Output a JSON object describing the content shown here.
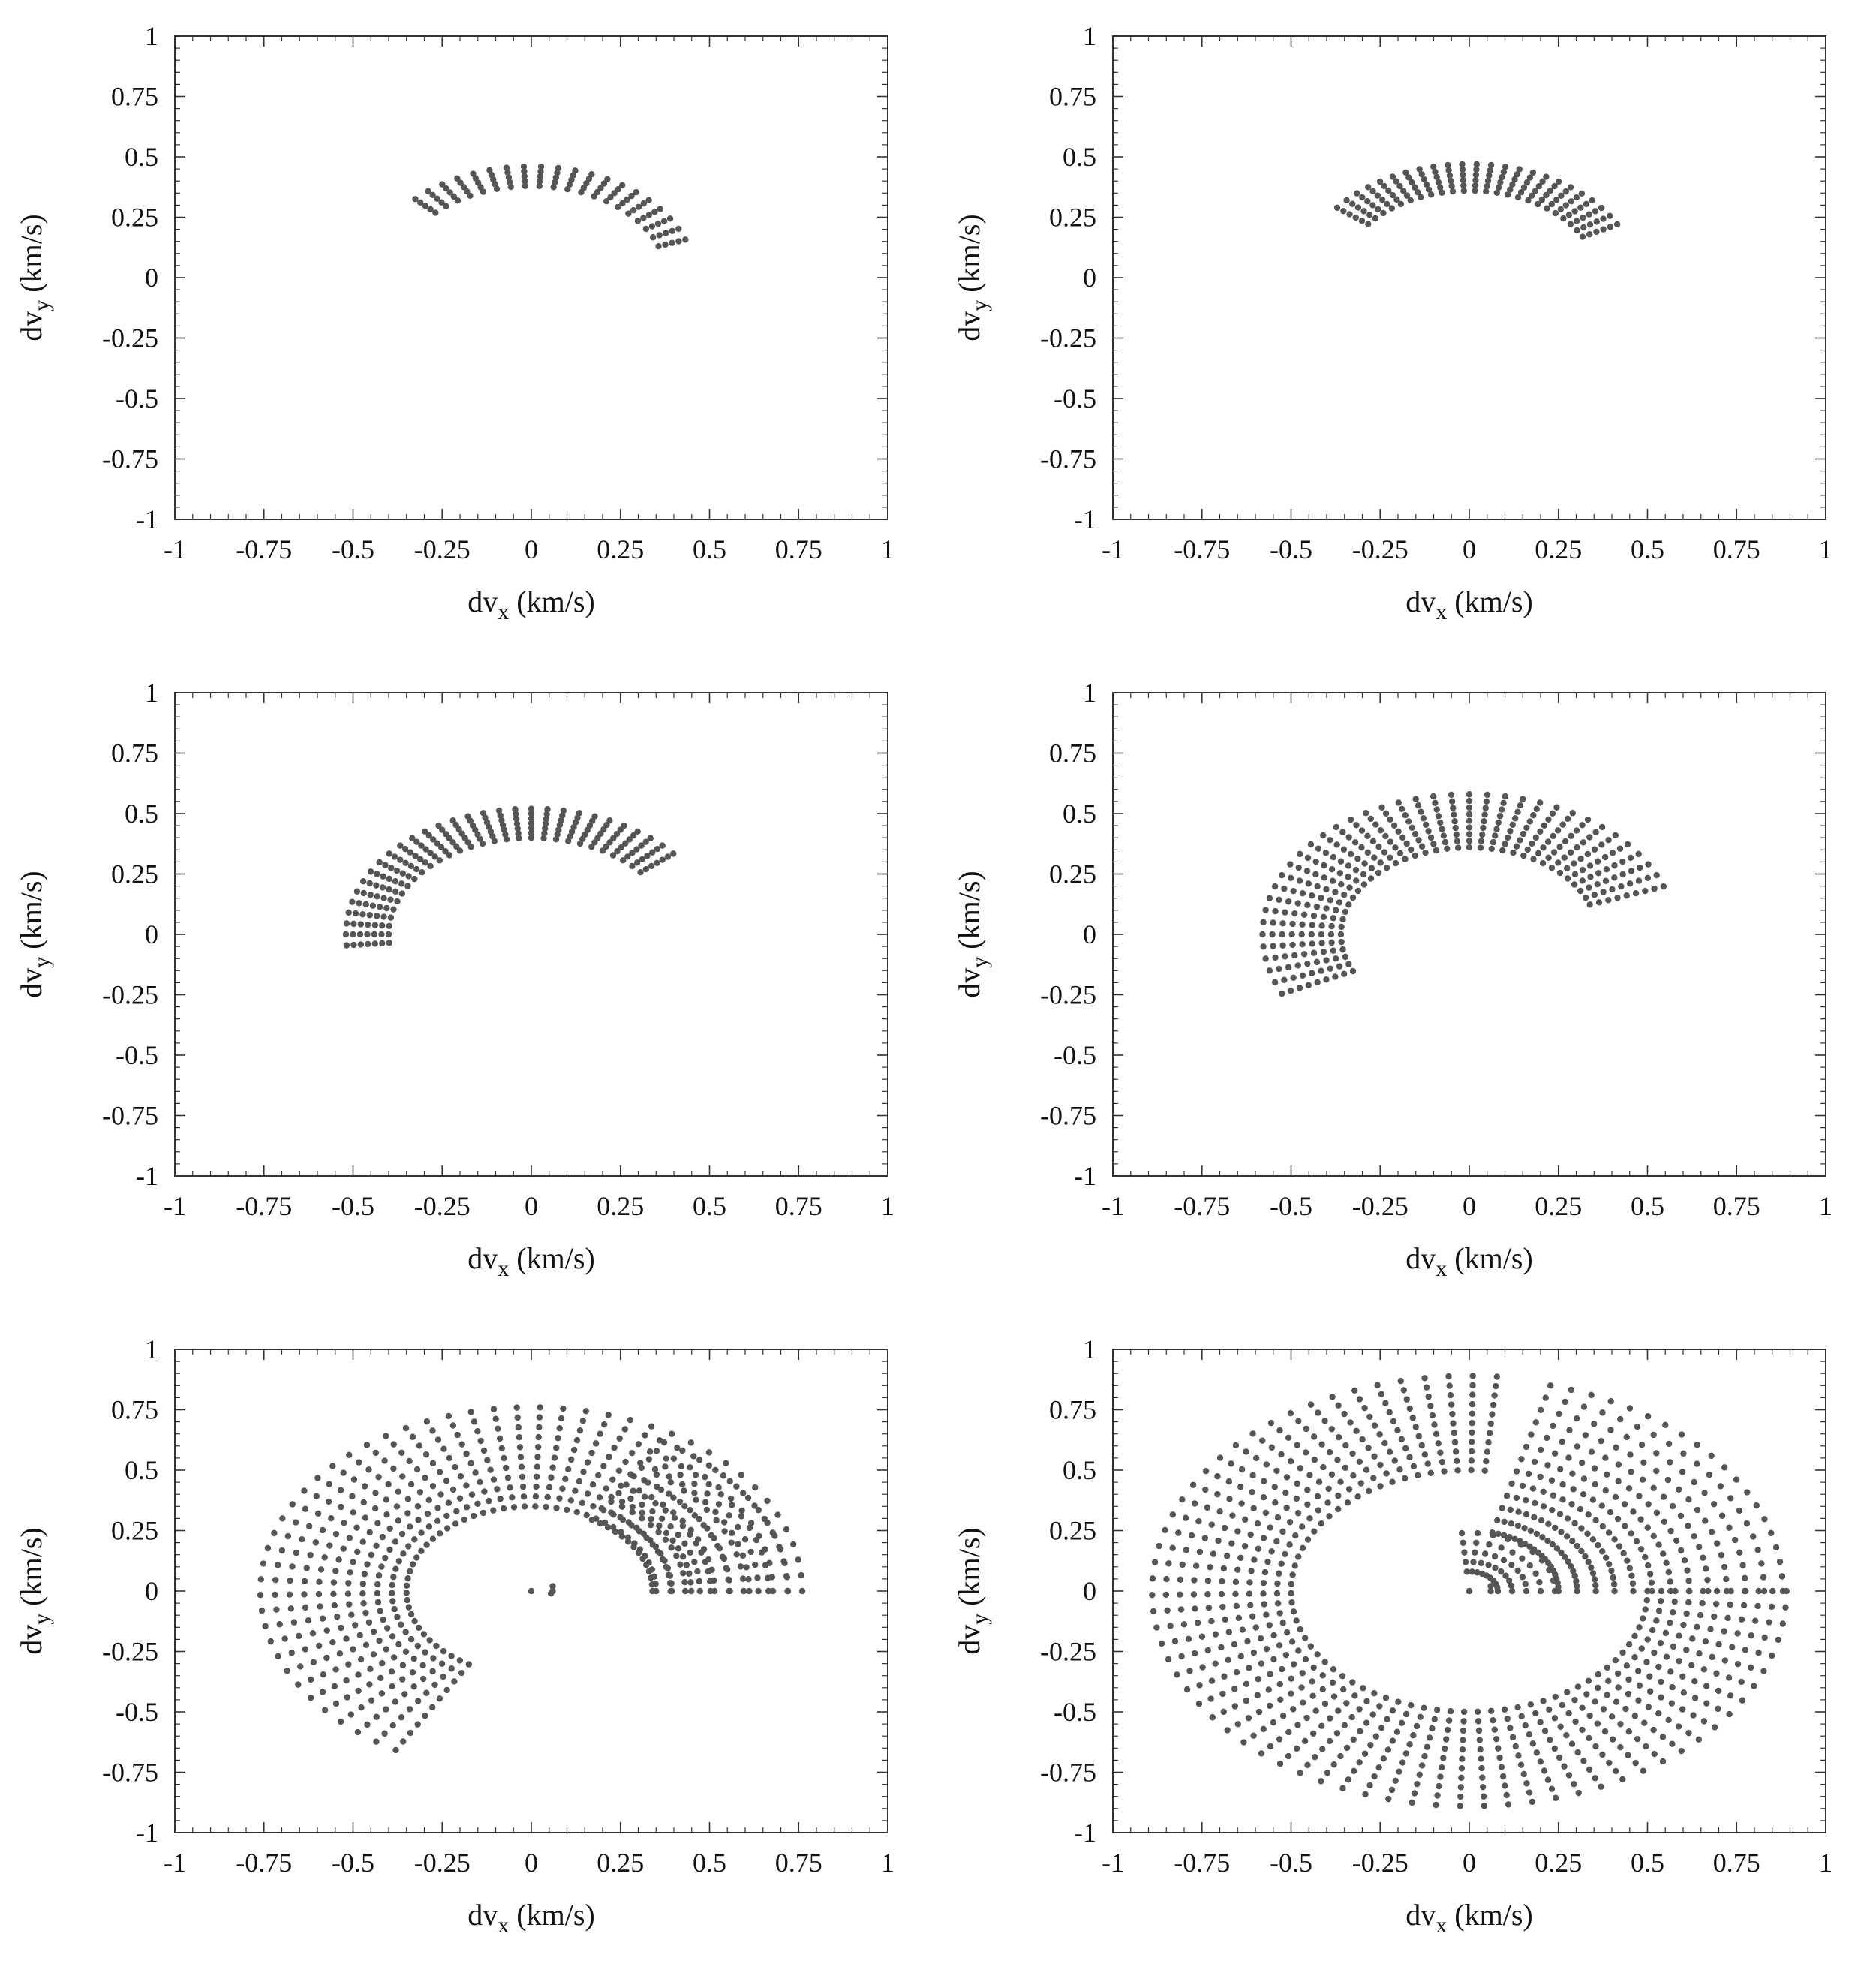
{
  "figure": {
    "marker_color": "#555555",
    "frame_color": "#333333",
    "background": "#ffffff"
  },
  "chart_data": [
    {
      "type": "scatter",
      "panel": "top-left",
      "title": "",
      "xlabel_main": "dv",
      "xlabel_sub": "x",
      "xlabel_unit": " (km/s)",
      "ylabel_main": "dv",
      "ylabel_sub": "y",
      "ylabel_unit": " (km/s)",
      "xlim": [
        -1,
        1
      ],
      "ylim": [
        -1,
        1
      ],
      "xticks": [
        "-1",
        "-0.75",
        "-0.5",
        "-0.25",
        "0",
        "0.25",
        "0.5",
        "0.75",
        "1"
      ],
      "yticks": [
        "-1",
        "-0.75",
        "-0.5",
        "-0.25",
        "0",
        "0.25",
        "0.5",
        "0.75",
        "1"
      ],
      "series": [
        {
          "name": "grid",
          "rays": 20,
          "theta_start_deg": 135,
          "theta_end_deg": 20,
          "r0": 0.38,
          "rmax": 0.46,
          "n": 5
        }
      ]
    },
    {
      "type": "scatter",
      "panel": "top-right",
      "title": "",
      "xlabel_main": "dv",
      "xlabel_sub": "x",
      "xlabel_unit": " (km/s)",
      "ylabel_main": "dv",
      "ylabel_sub": "y",
      "ylabel_unit": " (km/s)",
      "xlim": [
        -1,
        1
      ],
      "ylim": [
        -1,
        1
      ],
      "xticks": [
        "-1",
        "-0.75",
        "-0.5",
        "-0.25",
        "0",
        "0.25",
        "0.5",
        "0.75",
        "1"
      ],
      "yticks": [
        "-1",
        "-0.75",
        "-0.5",
        "-0.25",
        "0",
        "0.25",
        "0.5",
        "0.75",
        "1"
      ],
      "series": [
        {
          "name": "grid",
          "rays": 24,
          "theta_start_deg": 142,
          "theta_end_deg": 28,
          "r0": 0.36,
          "rmax": 0.47,
          "n": 6
        }
      ]
    },
    {
      "type": "scatter",
      "panel": "middle-left",
      "title": "",
      "xlabel_main": "dv",
      "xlabel_sub": "x",
      "xlabel_unit": " (km/s)",
      "ylabel_main": "dv",
      "ylabel_sub": "y",
      "ylabel_unit": " (km/s)",
      "xlim": [
        -1,
        1
      ],
      "ylim": [
        -1,
        1
      ],
      "xticks": [
        "-1",
        "-0.75",
        "-0.5",
        "-0.25",
        "0",
        "0.25",
        "0.5",
        "0.75",
        "1"
      ],
      "yticks": [
        "-1",
        "-0.75",
        "-0.5",
        "-0.25",
        "0",
        "0.25",
        "0.5",
        "0.75",
        "1"
      ],
      "series": [
        {
          "name": "grid",
          "rays": 30,
          "theta_start_deg": 185,
          "theta_end_deg": 40,
          "r0": 0.4,
          "rmax": 0.52,
          "n": 7
        }
      ]
    },
    {
      "type": "scatter",
      "panel": "middle-right",
      "title": "",
      "xlabel_main": "dv",
      "xlabel_sub": "x",
      "xlabel_unit": " (km/s)",
      "ylabel_main": "dv",
      "ylabel_sub": "y",
      "ylabel_unit": " (km/s)",
      "xlim": [
        -1,
        1
      ],
      "ylim": [
        -1,
        1
      ],
      "xticks": [
        "-1",
        "-0.75",
        "-0.5",
        "-0.25",
        "0",
        "0.25",
        "0.5",
        "0.75",
        "1"
      ],
      "yticks": [
        "-1",
        "-0.75",
        "-0.5",
        "-0.25",
        "0",
        "0.25",
        "0.5",
        "0.75",
        "1"
      ],
      "series": [
        {
          "name": "grid",
          "rays": 38,
          "theta_start_deg": 205,
          "theta_end_deg": 20,
          "r0": 0.36,
          "rmax": 0.58,
          "n": 9
        }
      ]
    },
    {
      "type": "scatter",
      "panel": "bottom-left",
      "title": "",
      "xlabel_main": "dv",
      "xlabel_sub": "x",
      "xlabel_unit": " (km/s)",
      "ylabel_main": "dv",
      "ylabel_sub": "y",
      "ylabel_unit": " (km/s)",
      "xlim": [
        -1,
        1
      ],
      "ylim": [
        -1,
        1
      ],
      "xticks": [
        "-1",
        "-0.75",
        "-0.5",
        "-0.25",
        "0",
        "0.25",
        "0.5",
        "0.75",
        "1"
      ],
      "yticks": [
        "-1",
        "-0.75",
        "-0.5",
        "-0.25",
        "0",
        "0.25",
        "0.5",
        "0.75",
        "1"
      ],
      "series": [
        {
          "name": "main-arc",
          "rays": 50,
          "theta_start_deg": 240,
          "theta_end_deg": 0,
          "r0": 0.35,
          "rmax": 0.76,
          "n": 11
        },
        {
          "name": "right-lobe",
          "rays": 14,
          "theta_start_deg": 60,
          "theta_end_deg": 0,
          "r0": 0.34,
          "rmax": 0.72,
          "n": 8
        },
        {
          "name": "center",
          "points": [
            [
              0.0,
              0.0
            ],
            [
              0.06,
              0.0
            ],
            [
              0.06,
              0.02
            ],
            [
              0.055,
              -0.01
            ]
          ]
        }
      ]
    },
    {
      "type": "scatter",
      "panel": "bottom-right",
      "title": "",
      "xlabel_main": "dv",
      "xlabel_sub": "x",
      "xlabel_unit": " (km/s)",
      "ylabel_main": "dv",
      "ylabel_sub": "y",
      "ylabel_unit": " (km/s)",
      "xlim": [
        -1,
        1
      ],
      "ylim": [
        -1,
        1
      ],
      "xticks": [
        "-1",
        "-0.75",
        "-0.5",
        "-0.25",
        "0",
        "0.25",
        "0.5",
        "0.75",
        "1"
      ],
      "yticks": [
        "-1",
        "-0.75",
        "-0.5",
        "-0.25",
        "0",
        "0.25",
        "0.5",
        "0.75",
        "1"
      ],
      "series": [
        {
          "name": "outer-ring",
          "rays": 64,
          "theta_start_deg": 85,
          "theta_end_deg": 360,
          "r0": 0.5,
          "rmax": 0.89,
          "n": 11
        },
        {
          "name": "upper-right",
          "rays": 20,
          "theta_start_deg": 75,
          "theta_end_deg": 0,
          "r0": 0.25,
          "rmax": 0.88,
          "n": 13
        },
        {
          "name": "inner-arcs",
          "rays": 10,
          "theta_start_deg": 95,
          "theta_end_deg": 0,
          "r0": 0.08,
          "rmax": 0.24,
          "n": 5
        },
        {
          "name": "center",
          "points": [
            [
              0.0,
              0.0
            ],
            [
              0.06,
              0.0
            ],
            [
              0.06,
              0.02
            ]
          ]
        }
      ]
    }
  ]
}
